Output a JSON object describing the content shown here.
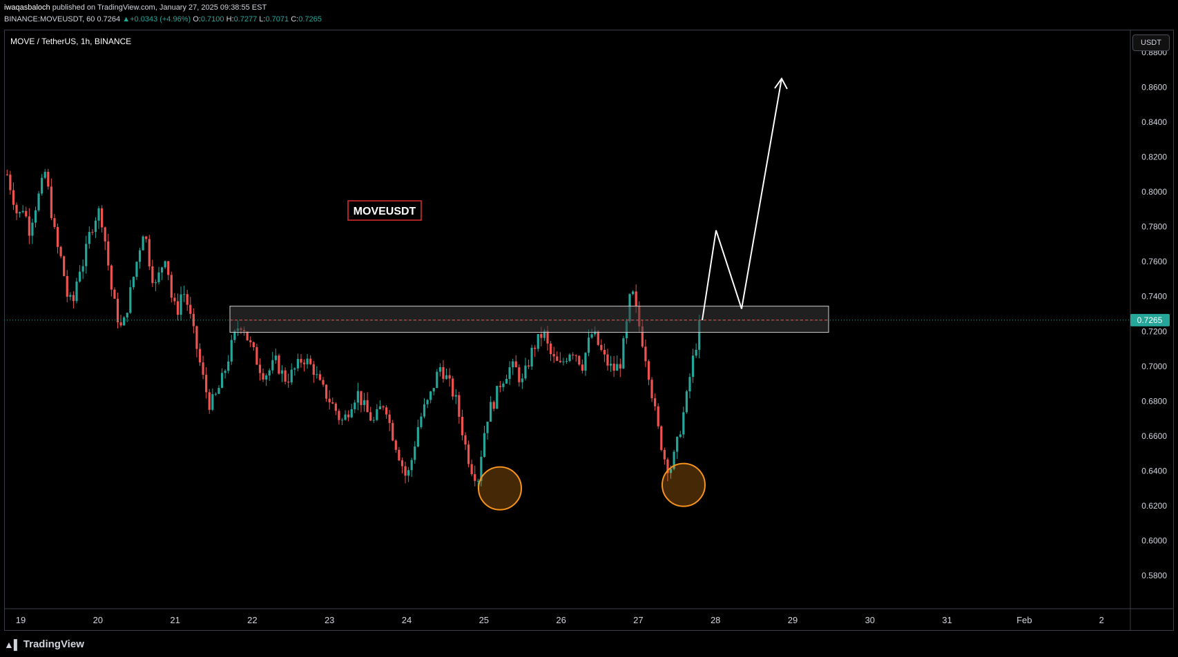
{
  "header": {
    "author": "iwaqasbaloch",
    "published_text": "published on TradingView.com, January 27, 2025 09:38:55 EST",
    "symbol_line": "BINANCE:MOVEUSDT, 60",
    "last": "0.7264",
    "change": "+0.0343 (+4.96%)",
    "o_label": "O:",
    "o": "0.7100",
    "h_label": "H:",
    "h": "0.7277",
    "l_label": "L:",
    "l": "0.7071",
    "c_label": "C:",
    "c": "0.7265"
  },
  "pane_title": "MOVE / TetherUS, 1h, BINANCE",
  "currency_button": "USDT",
  "branding": "TradingView",
  "colors": {
    "up": "#26a69a",
    "down": "#ef5350",
    "zone": "#3a3a3a",
    "circle": "#f7931a",
    "label_border": "#e03131",
    "price_tag": "#26a69a"
  },
  "chart_data": {
    "type": "candlestick",
    "symbol": "MOVEUSDT",
    "timeframe": "1h",
    "ylim": [
      0.565,
      0.888
    ],
    "y_ticks": [
      "0.5800",
      "0.6000",
      "0.6200",
      "0.6400",
      "0.6600",
      "0.6800",
      "0.7000",
      "0.7200",
      "0.7400",
      "0.7600",
      "0.7800",
      "0.8000",
      "0.8200",
      "0.8400",
      "0.8600",
      "0.8800"
    ],
    "x_ticks": [
      "19",
      "20",
      "21",
      "22",
      "23",
      "24",
      "25",
      "26",
      "27",
      "28",
      "29",
      "30",
      "31",
      "Feb",
      "2"
    ],
    "current_price": "0.7265",
    "annotations": {
      "label": "MOVEUSDT",
      "resistance_zone": {
        "low": 0.7195,
        "high": 0.7345
      },
      "bottoms_marked": [
        0.63,
        0.632
      ],
      "projection": [
        0.7265,
        0.778,
        0.733,
        0.865
      ]
    },
    "price_path": [
      0.81,
      0.798,
      0.785,
      0.792,
      0.778,
      0.79,
      0.8,
      0.812,
      0.79,
      0.77,
      0.76,
      0.74,
      0.735,
      0.755,
      0.76,
      0.775,
      0.785,
      0.79,
      0.77,
      0.745,
      0.73,
      0.72,
      0.735,
      0.75,
      0.765,
      0.78,
      0.76,
      0.745,
      0.755,
      0.765,
      0.74,
      0.73,
      0.745,
      0.735,
      0.72,
      0.705,
      0.69,
      0.678,
      0.682,
      0.69,
      0.7,
      0.712,
      0.722,
      0.725,
      0.715,
      0.708,
      0.7,
      0.695,
      0.698,
      0.703,
      0.697,
      0.692,
      0.696,
      0.7,
      0.705,
      0.702,
      0.698,
      0.69,
      0.685,
      0.68,
      0.675,
      0.668,
      0.672,
      0.68,
      0.685,
      0.678,
      0.672,
      0.668,
      0.675,
      0.68,
      0.665,
      0.655,
      0.645,
      0.635,
      0.648,
      0.665,
      0.675,
      0.68,
      0.69,
      0.7,
      0.695,
      0.688,
      0.68,
      0.665,
      0.65,
      0.64,
      0.636,
      0.66,
      0.675,
      0.68,
      0.69,
      0.695,
      0.7,
      0.698,
      0.69,
      0.7,
      0.71,
      0.715,
      0.72,
      0.708,
      0.703,
      0.7,
      0.705,
      0.71,
      0.707,
      0.7,
      0.712,
      0.72,
      0.712,
      0.705,
      0.7,
      0.698,
      0.702,
      0.72,
      0.745,
      0.73,
      0.715,
      0.7,
      0.68,
      0.662,
      0.648,
      0.64,
      0.65,
      0.665,
      0.68,
      0.7,
      0.715,
      0.7265
    ]
  }
}
